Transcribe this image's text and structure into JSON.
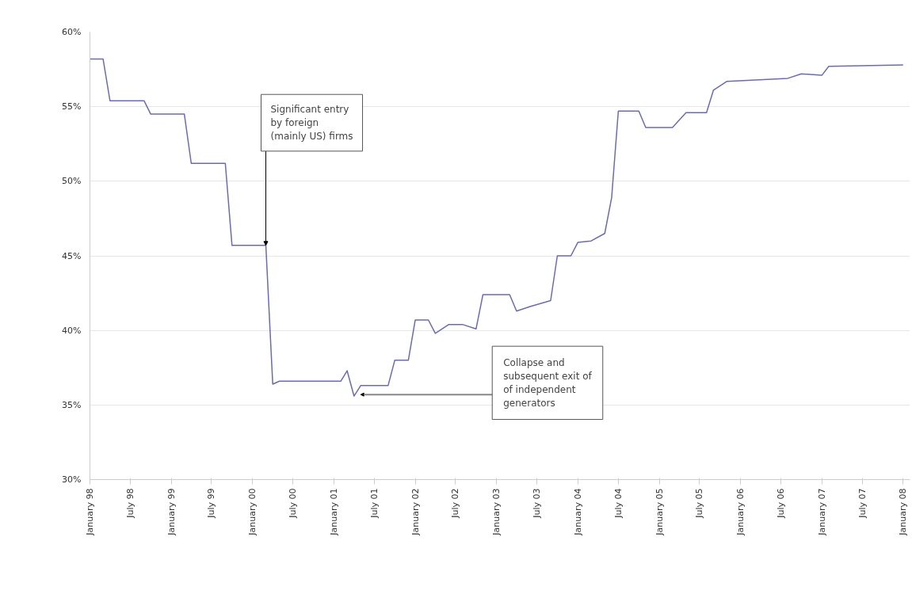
{
  "chart_data": {
    "type": "line",
    "x": [
      "1998-01",
      "1998-03",
      "1998-04",
      "1998-09",
      "1998-10",
      "1999-03",
      "1999-04",
      "1999-09",
      "1999-10",
      "2000-03",
      "2000-04",
      "2000-05",
      "2001-02",
      "2001-03",
      "2001-04",
      "2001-05",
      "2001-09",
      "2001-10",
      "2001-12",
      "2002-01",
      "2002-03",
      "2002-04",
      "2002-06",
      "2002-08",
      "2002-10",
      "2002-11",
      "2003-03",
      "2003-04",
      "2003-06",
      "2003-09",
      "2003-10",
      "2003-12",
      "2004-01",
      "2004-03",
      "2004-05",
      "2004-06",
      "2004-07",
      "2004-10",
      "2004-11",
      "2005-03",
      "2005-05",
      "2005-08",
      "2005-09",
      "2005-11",
      "2006-08",
      "2006-10",
      "2007-01",
      "2007-02",
      "2008-01"
    ],
    "series": [
      {
        "color": "#6b6bb0",
        "values": [
          58.2,
          58.2,
          55.4,
          55.4,
          54.5,
          54.5,
          51.2,
          51.2,
          45.7,
          45.7,
          36.4,
          36.6,
          36.6,
          37.3,
          35.6,
          36.3,
          36.3,
          38.0,
          38.0,
          40.7,
          40.7,
          39.8,
          40.4,
          40.4,
          40.1,
          42.4,
          42.4,
          41.3,
          41.6,
          42.0,
          45.0,
          45.0,
          45.9,
          46.0,
          46.5,
          48.9,
          54.7,
          54.7,
          53.6,
          53.6,
          54.6,
          54.6,
          56.1,
          56.7,
          56.9,
          57.2,
          57.1,
          57.7,
          57.8
        ]
      }
    ],
    "ylim": [
      30,
      60
    ],
    "yticks": [
      {
        "value": 30,
        "label": "30%"
      },
      {
        "value": 35,
        "label": "35%"
      },
      {
        "value": 40,
        "label": "40%"
      },
      {
        "value": 45,
        "label": "45%"
      },
      {
        "value": 50,
        "label": "50%"
      },
      {
        "value": 55,
        "label": "55%"
      },
      {
        "value": 60,
        "label": "60%"
      }
    ],
    "xlim": [
      "1998-01",
      "2008-02"
    ],
    "xticks": [
      {
        "value": "1998-01",
        "label": "January 98"
      },
      {
        "value": "1998-07",
        "label": "July 98"
      },
      {
        "value": "1999-01",
        "label": "January 99"
      },
      {
        "value": "1999-07",
        "label": "July 99"
      },
      {
        "value": "2000-01",
        "label": "January 00"
      },
      {
        "value": "2000-07",
        "label": "July 00"
      },
      {
        "value": "2001-01",
        "label": "January 01"
      },
      {
        "value": "2001-07",
        "label": "July 01"
      },
      {
        "value": "2002-01",
        "label": "January 02"
      },
      {
        "value": "2002-07",
        "label": "July 02"
      },
      {
        "value": "2003-01",
        "label": "January 03"
      },
      {
        "value": "2003-07",
        "label": "July 03"
      },
      {
        "value": "2004-01",
        "label": "January 04"
      },
      {
        "value": "2004-07",
        "label": "July 04"
      },
      {
        "value": "2005-01",
        "label": "January 05"
      },
      {
        "value": "2005-07",
        "label": "July 05"
      },
      {
        "value": "2006-01",
        "label": "January 06"
      },
      {
        "value": "2006-07",
        "label": "July 06"
      },
      {
        "value": "2007-01",
        "label": "January 07"
      },
      {
        "value": "2007-07",
        "label": "July 07"
      },
      {
        "value": "2008-01",
        "label": "January 08"
      }
    ],
    "grid": "y",
    "annotations": [
      {
        "text": "Significant entry\nby foreign\n(mainly US) firms",
        "x": "2000-03",
        "y": 45.7
      },
      {
        "text": "Collapse and\nsubsequent exit of\nof independent\ngenerators",
        "x": "2001-05",
        "y": 35.7
      }
    ]
  }
}
